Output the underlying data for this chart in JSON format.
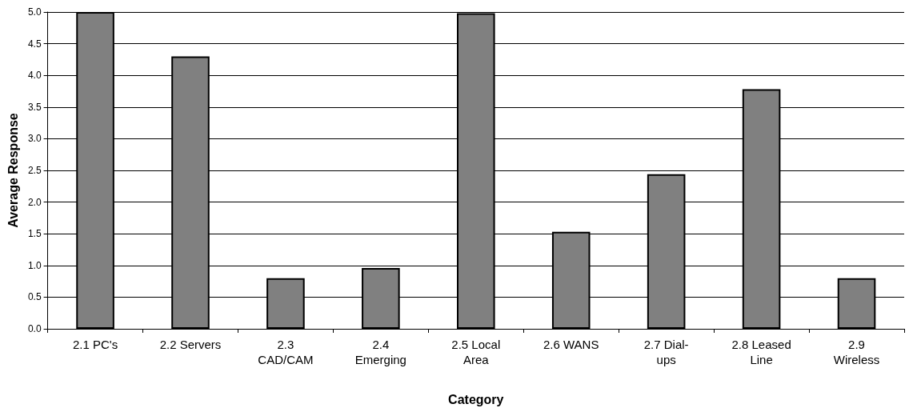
{
  "chart_data": {
    "type": "bar",
    "xlabel": "Category",
    "ylabel": "Average Response",
    "categories": [
      "2.1 PC's",
      "2.2 Servers",
      "2.3 CAD/CAM",
      "2.4 Emerging",
      "2.5 Local Area",
      "2.6 WANS",
      "2.7 Dial-ups",
      "2.8 Leased Line",
      "2.9 Wireless"
    ],
    "values": [
      5.0,
      4.3,
      0.8,
      0.96,
      4.98,
      1.53,
      2.44,
      3.78,
      0.8
    ],
    "color": "#808080",
    "ylim": [
      0,
      5
    ],
    "yticks": [
      {
        "value": 0,
        "label": "0.0"
      },
      {
        "value": 0.5,
        "label": "0.5"
      },
      {
        "value": 1,
        "label": "1.0"
      },
      {
        "value": 1.5,
        "label": "1.5"
      },
      {
        "value": 2,
        "label": "2.0"
      },
      {
        "value": 2.5,
        "label": "2.5"
      },
      {
        "value": 3,
        "label": "3.0"
      },
      {
        "value": 3.5,
        "label": "3.5"
      },
      {
        "value": 4,
        "label": "4.0"
      },
      {
        "value": 4.5,
        "label": "4.5"
      },
      {
        "value": 5,
        "label": "5.0"
      }
    ],
    "grid": "y"
  }
}
